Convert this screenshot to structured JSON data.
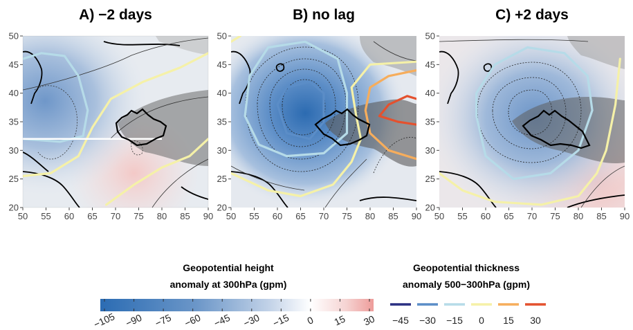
{
  "chart_data": [
    {
      "type": "heatmap",
      "title": "A) −2 days",
      "xlim": [
        50,
        90
      ],
      "ylim": [
        20,
        50
      ],
      "x_ticks": [
        "50",
        "55",
        "60",
        "65",
        "70",
        "75",
        "80",
        "85",
        "90"
      ],
      "y_ticks": [
        "20",
        "25",
        "30",
        "35",
        "40",
        "45",
        "50"
      ],
      "height_anomaly_min": {
        "lon": 56,
        "lat": 38.5,
        "value": -45
      },
      "thickness_contours": [
        {
          "level": -15,
          "path": [
            [
              50,
              32
            ],
            [
              58,
              31.5
            ],
            [
              63,
              32.5
            ],
            [
              64,
              37
            ],
            [
              62,
              43
            ],
            [
              59,
              46.5
            ],
            [
              54,
              47
            ],
            [
              50,
              46
            ]
          ]
        },
        {
          "level": 0,
          "path": [
            [
              50,
              25.5
            ],
            [
              56,
              26
            ],
            [
              62,
              29
            ],
            [
              65,
              34
            ],
            [
              69,
              39
            ],
            [
              76,
              42
            ],
            [
              84,
              44.5
            ],
            [
              90,
              47
            ]
          ]
        },
        {
          "level": 0,
          "path": [
            [
              68,
              20.5
            ],
            [
              74,
              24
            ],
            [
              80,
              27
            ],
            [
              86,
              29
            ],
            [
              90,
              32
            ]
          ]
        }
      ],
      "transect": {
        "lon": [
          50,
          80
        ],
        "lat": 32
      }
    },
    {
      "type": "heatmap",
      "title": "B) no lag",
      "xlim": [
        50,
        90
      ],
      "ylim": [
        20,
        50
      ],
      "x_ticks": [
        "50",
        "55",
        "60",
        "65",
        "70",
        "75",
        "80",
        "85",
        "90"
      ],
      "y_ticks": [
        "20",
        "25",
        "30",
        "35",
        "40",
        "45",
        "50"
      ],
      "height_anomaly_min": {
        "lon": 65,
        "lat": 37,
        "value": -100
      },
      "thickness_contours": [
        {
          "level": -30,
          "path": [
            [
              60,
              38
            ],
            [
              62,
              33
            ],
            [
              67,
              32
            ],
            [
              70,
              35
            ],
            [
              70,
              40
            ],
            [
              67,
              42
            ],
            [
              62,
              41
            ],
            [
              60,
              38
            ]
          ]
        },
        {
          "level": -15,
          "path": [
            [
              53,
              36
            ],
            [
              56,
              31
            ],
            [
              62,
              29
            ],
            [
              70,
              29.5
            ],
            [
              75,
              33
            ],
            [
              75,
              40
            ],
            [
              73,
              46
            ],
            [
              66,
              49
            ],
            [
              58,
              48
            ],
            [
              54,
              43
            ],
            [
              53,
              36
            ]
          ]
        },
        {
          "level": 0,
          "path": [
            [
              50,
              26
            ],
            [
              58,
              23
            ],
            [
              65,
              22
            ],
            [
              72,
              24
            ],
            [
              76,
              28
            ],
            [
              78,
              32
            ],
            [
              77,
              36
            ],
            [
              76,
              41
            ],
            [
              80,
              45
            ],
            [
              90,
              45.5
            ]
          ]
        },
        {
          "level": 0,
          "path": [
            [
              50,
              49
            ],
            [
              52,
              50
            ]
          ]
        },
        {
          "level": 15,
          "path": [
            [
              90,
              28.5
            ],
            [
              84,
              30
            ],
            [
              80,
              33
            ],
            [
              79,
              37
            ],
            [
              80,
              41
            ],
            [
              84,
              43
            ],
            [
              90,
              44
            ]
          ]
        },
        {
          "level": 30,
          "path": [
            [
              90,
              34.5
            ],
            [
              86,
              35
            ],
            [
              82,
              36
            ],
            [
              84,
              38
            ],
            [
              88,
              39.5
            ],
            [
              90,
              39
            ]
          ]
        }
      ]
    },
    {
      "type": "heatmap",
      "title": "C) +2 days",
      "xlim": [
        50,
        90
      ],
      "ylim": [
        20,
        50
      ],
      "x_ticks": [
        "50",
        "55",
        "60",
        "65",
        "70",
        "75",
        "80",
        "85",
        "90"
      ],
      "y_ticks": [
        "20",
        "25",
        "30",
        "35",
        "40",
        "45",
        "50"
      ],
      "height_anomaly_min": {
        "lon": 71,
        "lat": 36,
        "value": -60
      },
      "thickness_contours": [
        {
          "level": -15,
          "path": [
            [
              58,
              36
            ],
            [
              60,
              29
            ],
            [
              66,
              25
            ],
            [
              74,
              26
            ],
            [
              80,
              30
            ],
            [
              83,
              37
            ],
            [
              82,
              43
            ],
            [
              77,
              47
            ],
            [
              69,
              48
            ],
            [
              62,
              45
            ],
            [
              58,
              40
            ],
            [
              58,
              36
            ]
          ]
        },
        {
          "level": 0,
          "path": [
            [
              50,
              26
            ],
            [
              55,
              23
            ],
            [
              62,
              21
            ],
            [
              72,
              20.5
            ],
            [
              80,
              22
            ],
            [
              84,
              26
            ],
            [
              86,
              30
            ],
            [
              88,
              38
            ],
            [
              89,
              46
            ]
          ]
        }
      ]
    }
  ],
  "legend": {
    "height_title_line1": "Geopotential height",
    "height_title_line2": "anomaly at 300hPa (gpm)",
    "height_ticks": [
      "−105",
      "−90",
      "−75",
      "−60",
      "−45",
      "−30",
      "−15",
      "0",
      "15",
      "30"
    ],
    "height_colors": [
      "#2b6cb3",
      "#6b96c8",
      "#aec6e0",
      "#ffffff",
      "#f4c8c6",
      "#ee9c9a"
    ],
    "thickness_title_line1": "Geopotential thickness",
    "thickness_title_line2": "anomaly 500−300hPa (gpm)",
    "thickness_levels": [
      {
        "label": "−45",
        "color": "#2a2f82"
      },
      {
        "label": "−30",
        "color": "#5b8dc7"
      },
      {
        "label": "−15",
        "color": "#b6dbe8"
      },
      {
        "label": "0",
        "color": "#f5f1a8"
      },
      {
        "label": "15",
        "color": "#f6ad5c"
      },
      {
        "label": "30",
        "color": "#e4512e"
      }
    ]
  }
}
